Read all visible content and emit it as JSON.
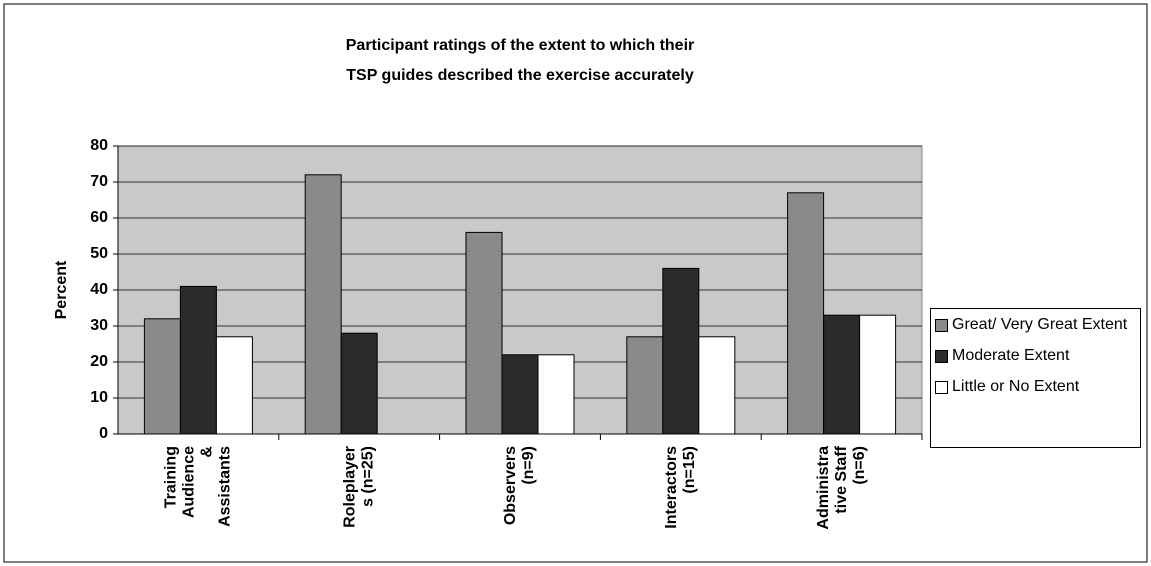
{
  "chart_data": {
    "type": "bar",
    "title": [
      "Participant ratings of the extent to which their",
      "TSP guides described the exercise accurately"
    ],
    "ylabel": "Percent",
    "categories": [
      [
        "Training",
        "Audience",
        "&",
        "Assistants"
      ],
      [
        "Roleplayer",
        "s (n=25)"
      ],
      [
        "Observers",
        "(n=9)"
      ],
      [
        "Interactors",
        "(n=15)"
      ],
      [
        "Administra",
        "tive Staff",
        "(n=6)"
      ]
    ],
    "series": [
      {
        "name": "Great/ Very Great Extent",
        "color": "#8a8a8a",
        "values": [
          32,
          72,
          56,
          27,
          67
        ]
      },
      {
        "name": "Moderate Extent",
        "color": "#2b2b2b",
        "values": [
          41,
          28,
          22,
          46,
          33
        ]
      },
      {
        "name": "Little or No Extent",
        "color": "#ffffff",
        "values": [
          27,
          0,
          22,
          27,
          33
        ]
      }
    ],
    "ylim": [
      0,
      80
    ],
    "yticks": [
      0,
      10,
      20,
      30,
      40,
      50,
      60,
      70,
      80
    ],
    "grid": true,
    "legend": "right"
  }
}
